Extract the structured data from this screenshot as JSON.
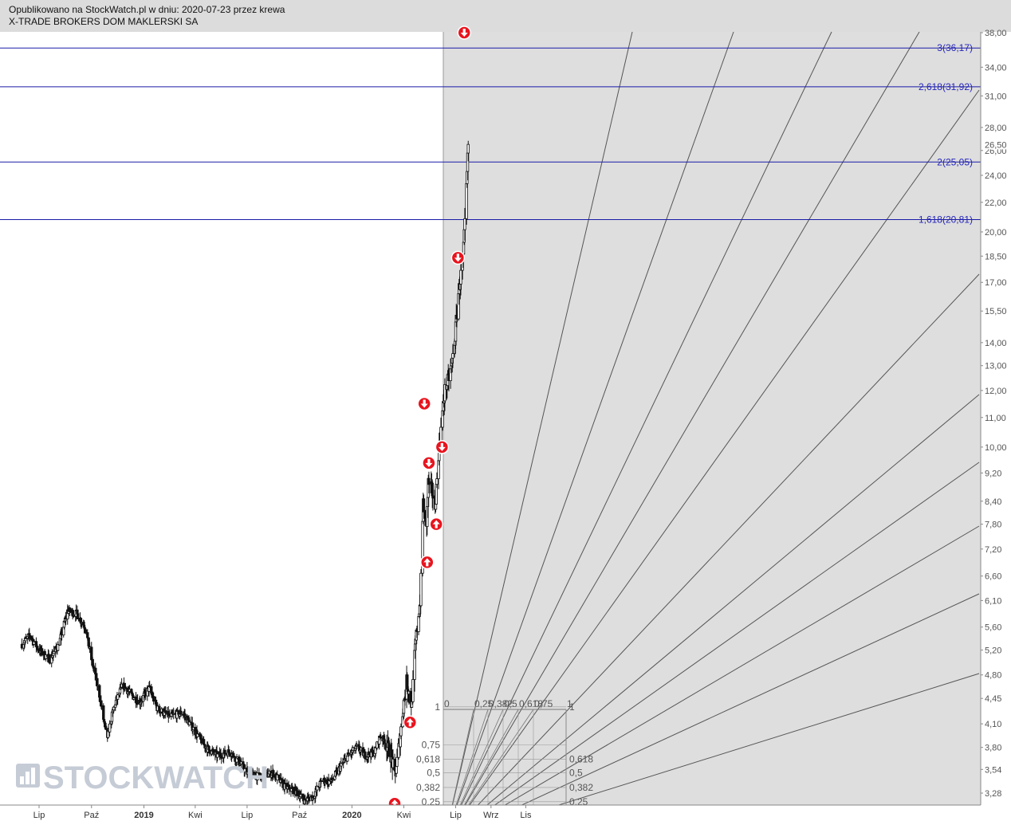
{
  "header": {
    "published": "Opublikowano na StockWatch.pl w dniu: 2020-07-23 przez krewa",
    "company": "X-TRADE BROKERS DOM MAKLERSKI SA"
  },
  "watermark": {
    "text": "STOCKWATCH",
    "icon": "bar-chart-icon"
  },
  "colors": {
    "fib_line": "#1a1aa8",
    "fib_label": "#2626b8",
    "signal": "#e8141e",
    "fan_lines": "#555555",
    "highlight_bg": "#dedede",
    "candles": "#111111"
  },
  "chart_data": {
    "type": "candlestick",
    "title": "",
    "y_scale": "log",
    "ylim": [
      3.1,
      38.5
    ],
    "y_ticks": [
      "3,28",
      "3,54",
      "3,80",
      "4,10",
      "4,45",
      "4,80",
      "5,20",
      "5,60",
      "6,10",
      "6,60",
      "7,20",
      "7,80",
      "8,40",
      "9,20",
      "10,00",
      "11,00",
      "12,00",
      "13,00",
      "14,00",
      "15,50",
      "17,00",
      "18,50",
      "20,00",
      "22,00",
      "24,00",
      "26,00",
      "28,00",
      "31,00",
      "34,00",
      "38,00"
    ],
    "last_price_label": "26,50",
    "x_ticks": [
      {
        "label": "Lip",
        "date": "2018-07-01"
      },
      {
        "label": "Paź",
        "date": "2018-10-01"
      },
      {
        "label": "2019",
        "date": "2019-01-01",
        "bold": true
      },
      {
        "label": "Kwi",
        "date": "2019-04-01"
      },
      {
        "label": "Lip",
        "date": "2019-07-01"
      },
      {
        "label": "Paź",
        "date": "2019-10-01"
      },
      {
        "label": "2020",
        "date": "2020-01-01",
        "bold": true
      },
      {
        "label": "Kwi",
        "date": "2020-04-01"
      },
      {
        "label": "Lip",
        "date": "2020-07-01"
      },
      {
        "label": "Wrz",
        "date": "2020-09-01"
      },
      {
        "label": "Lis",
        "date": "2020-11-01"
      }
    ],
    "price_path": [
      [
        "2018-06-01",
        5.3
      ],
      [
        "2018-06-15",
        5.45
      ],
      [
        "2018-07-01",
        5.2
      ],
      [
        "2018-07-20",
        5.05
      ],
      [
        "2018-08-05",
        5.3
      ],
      [
        "2018-08-20",
        5.9
      ],
      [
        "2018-09-05",
        5.85
      ],
      [
        "2018-09-20",
        5.6
      ],
      [
        "2018-10-01",
        5.05
      ],
      [
        "2018-10-15",
        4.5
      ],
      [
        "2018-10-28",
        3.9
      ],
      [
        "2018-11-10",
        4.35
      ],
      [
        "2018-11-25",
        4.65
      ],
      [
        "2018-12-10",
        4.5
      ],
      [
        "2018-12-25",
        4.4
      ],
      [
        "2019-01-10",
        4.6
      ],
      [
        "2019-01-25",
        4.3
      ],
      [
        "2019-02-15",
        4.2
      ],
      [
        "2019-03-10",
        4.25
      ],
      [
        "2019-04-01",
        4.0
      ],
      [
        "2019-04-20",
        3.8
      ],
      [
        "2019-05-10",
        3.7
      ],
      [
        "2019-06-01",
        3.75
      ],
      [
        "2019-06-20",
        3.6
      ],
      [
        "2019-07-01",
        3.5
      ],
      [
        "2019-07-25",
        3.45
      ],
      [
        "2019-08-15",
        3.5
      ],
      [
        "2019-09-05",
        3.35
      ],
      [
        "2019-09-25",
        3.3
      ],
      [
        "2019-10-10",
        3.2
      ],
      [
        "2019-10-25",
        3.25
      ],
      [
        "2019-11-10",
        3.42
      ],
      [
        "2019-11-25",
        3.4
      ],
      [
        "2019-12-10",
        3.55
      ],
      [
        "2019-12-25",
        3.7
      ],
      [
        "2020-01-10",
        3.8
      ],
      [
        "2020-01-25",
        3.7
      ],
      [
        "2020-02-10",
        3.75
      ],
      [
        "2020-02-20",
        3.95
      ],
      [
        "2020-03-01",
        3.85
      ],
      [
        "2020-03-10",
        3.7
      ],
      [
        "2020-03-16",
        3.45
      ],
      [
        "2020-03-25",
        3.9
      ],
      [
        "2020-04-01",
        4.4
      ],
      [
        "2020-04-06",
        4.7
      ],
      [
        "2020-04-15",
        4.35
      ],
      [
        "2020-04-20",
        5.1
      ],
      [
        "2020-04-25",
        5.7
      ],
      [
        "2020-04-30",
        6.1
      ],
      [
        "2020-05-05",
        8.4
      ],
      [
        "2020-05-10",
        7.5
      ],
      [
        "2020-05-14",
        8.9
      ],
      [
        "2020-05-20",
        8.7
      ],
      [
        "2020-05-26",
        8.3
      ],
      [
        "2020-06-01",
        9.8
      ],
      [
        "2020-06-06",
        10.8
      ],
      [
        "2020-06-12",
        12.0
      ],
      [
        "2020-06-18",
        12.4
      ],
      [
        "2020-06-24",
        13.0
      ],
      [
        "2020-06-30",
        14.3
      ],
      [
        "2020-07-05",
        16.2
      ],
      [
        "2020-07-10",
        17.4
      ],
      [
        "2020-07-14",
        18.3
      ],
      [
        "2020-07-17",
        20.4
      ],
      [
        "2020-07-20",
        23.0
      ],
      [
        "2020-07-23",
        26.5
      ]
    ],
    "fib_levels": [
      {
        "label": "3(36,17)",
        "value": 36.17
      },
      {
        "label": "2,618(31,92)",
        "value": 31.92
      },
      {
        "label": "2(25,05)",
        "value": 25.05
      },
      {
        "label": "1,618(20,81)",
        "value": 20.81
      }
    ],
    "fan_grid": {
      "ratio_labels_top": [
        "0",
        "0,25",
        "0,382",
        "0,5",
        "0,618",
        "0,75",
        "1"
      ],
      "left_labels": [
        {
          "label": "1",
          "value": 4.33
        },
        {
          "label": "0,75",
          "value": 3.83
        },
        {
          "label": "0,618",
          "value": 3.66
        },
        {
          "label": "0,5",
          "value": 3.5
        },
        {
          "label": "0,382",
          "value": 3.34
        },
        {
          "label": "0,25",
          "value": 3.19
        }
      ],
      "right_labels": [
        {
          "label": "1",
          "value": 4.33
        },
        {
          "label": "0,618",
          "value": 3.66
        },
        {
          "label": "0,5",
          "value": 3.5
        },
        {
          "label": "0,382",
          "value": 3.34
        },
        {
          "label": "0,25",
          "value": 3.19
        }
      ]
    },
    "signals": [
      {
        "type": "buy",
        "date": "2020-03-16",
        "value": 3.17
      },
      {
        "type": "buy",
        "date": "2020-04-12",
        "value": 4.12
      },
      {
        "type": "buy",
        "date": "2020-05-12",
        "value": 6.9
      },
      {
        "type": "buy",
        "date": "2020-05-28",
        "value": 7.8
      },
      {
        "type": "sell",
        "date": "2020-05-07",
        "value": 11.5
      },
      {
        "type": "sell",
        "date": "2020-05-15",
        "value": 9.5
      },
      {
        "type": "sell",
        "date": "2020-06-07",
        "value": 10.0
      },
      {
        "type": "sell",
        "date": "2020-07-05",
        "value": 18.4
      },
      {
        "type": "sell",
        "date": "2020-07-16",
        "value": 38.0
      }
    ]
  }
}
